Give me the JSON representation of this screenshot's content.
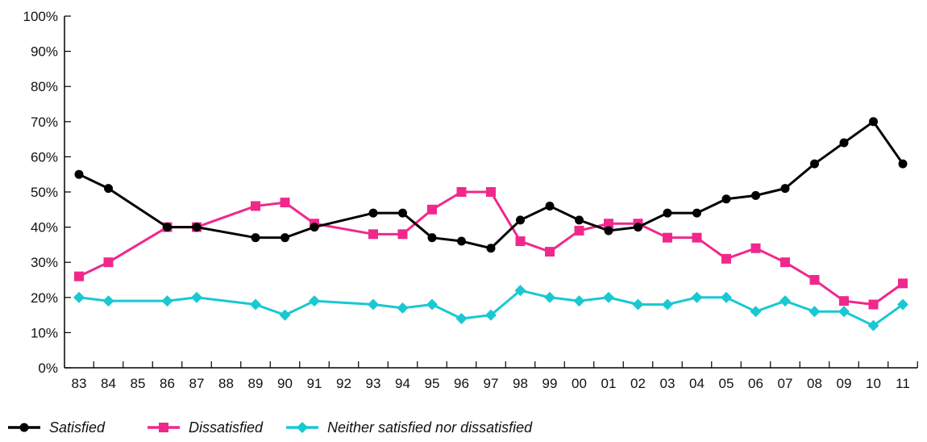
{
  "chart_data": {
    "type": "line",
    "categories": [
      "83",
      "84",
      "85",
      "86",
      "87",
      "88",
      "89",
      "90",
      "91",
      "92",
      "93",
      "94",
      "95",
      "96",
      "97",
      "98",
      "99",
      "00",
      "01",
      "02",
      "03",
      "04",
      "05",
      "06",
      "07",
      "08",
      "09",
      "10",
      "11"
    ],
    "ylim": [
      0,
      100
    ],
    "yticks": [
      "0%",
      "10%",
      "20%",
      "30%",
      "40%",
      "50%",
      "60%",
      "70%",
      "80%",
      "90%",
      "100%"
    ],
    "grid": false,
    "legend_position": "bottom-left",
    "series": [
      {
        "name": "Satisfied",
        "color": "#000000",
        "marker": "circle",
        "values": [
          55,
          51,
          null,
          40,
          40,
          null,
          37,
          37,
          40,
          null,
          44,
          44,
          37,
          36,
          34,
          42,
          46,
          42,
          39,
          40,
          44,
          44,
          48,
          49,
          51,
          58,
          64,
          70,
          58
        ]
      },
      {
        "name": "Dissatisfied",
        "color": "#f0288c",
        "marker": "square",
        "values": [
          26,
          30,
          null,
          40,
          40,
          null,
          46,
          47,
          41,
          null,
          38,
          38,
          45,
          50,
          50,
          36,
          33,
          39,
          41,
          41,
          37,
          37,
          31,
          34,
          30,
          25,
          19,
          18,
          24
        ]
      },
      {
        "name": "Neither satisfied nor dissatisfied",
        "color": "#19c8d2",
        "marker": "diamond",
        "values": [
          20,
          19,
          null,
          19,
          20,
          null,
          18,
          15,
          19,
          null,
          18,
          17,
          18,
          14,
          15,
          22,
          20,
          19,
          20,
          18,
          18,
          20,
          20,
          16,
          19,
          16,
          16,
          12,
          18
        ]
      }
    ]
  }
}
